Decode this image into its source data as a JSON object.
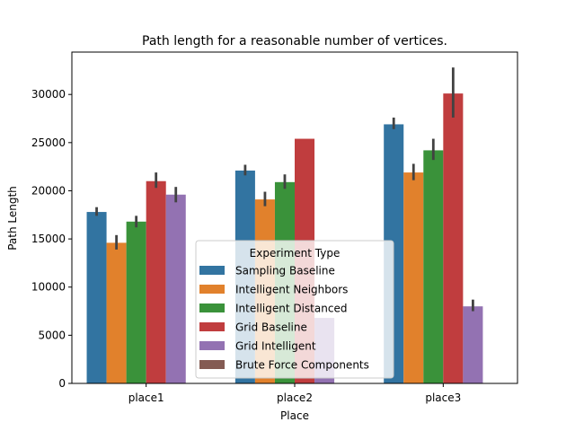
{
  "chart_data": {
    "type": "bar",
    "title": "Path length for a reasonable number of vertices.",
    "xlabel": "Place",
    "ylabel": "Path Length",
    "categories": [
      "place1",
      "place2",
      "place3"
    ],
    "ylim": [
      0,
      34400
    ],
    "yticks": [
      0,
      5000,
      10000,
      15000,
      20000,
      25000,
      30000
    ],
    "grid": false,
    "legend": {
      "title": "Experiment Type",
      "placement": "lower center"
    },
    "series": [
      {
        "name": "Sampling Baseline",
        "color": "#3274a1",
        "values": [
          17800,
          22100,
          26900
        ],
        "error": [
          [
            17400,
            18300
          ],
          [
            21600,
            22700
          ],
          [
            26400,
            27600
          ]
        ]
      },
      {
        "name": "Intelligent Neighbors",
        "color": "#e1812c",
        "values": [
          14600,
          19100,
          21900
        ],
        "error": [
          [
            13900,
            15400
          ],
          [
            18400,
            19900
          ],
          [
            21100,
            22800
          ]
        ]
      },
      {
        "name": "Intelligent Distanced",
        "color": "#3a923a",
        "values": [
          16800,
          20900,
          24200
        ],
        "error": [
          [
            16200,
            17400
          ],
          [
            20200,
            21700
          ],
          [
            23200,
            25400
          ]
        ]
      },
      {
        "name": "Grid Baseline",
        "color": "#c03d3e",
        "values": [
          21000,
          25400,
          30100
        ],
        "error": [
          [
            20300,
            21900
          ],
          null,
          [
            27600,
            32800
          ]
        ]
      },
      {
        "name": "Grid Intelligent",
        "color": "#9372b2",
        "values": [
          19600,
          6800,
          8000
        ],
        "error": [
          [
            18800,
            20400
          ],
          null,
          [
            7500,
            8700
          ]
        ]
      },
      {
        "name": "Brute Force Components",
        "color": "#845b53",
        "values": [
          null,
          null,
          null
        ],
        "error": [
          null,
          null,
          null
        ]
      }
    ]
  }
}
